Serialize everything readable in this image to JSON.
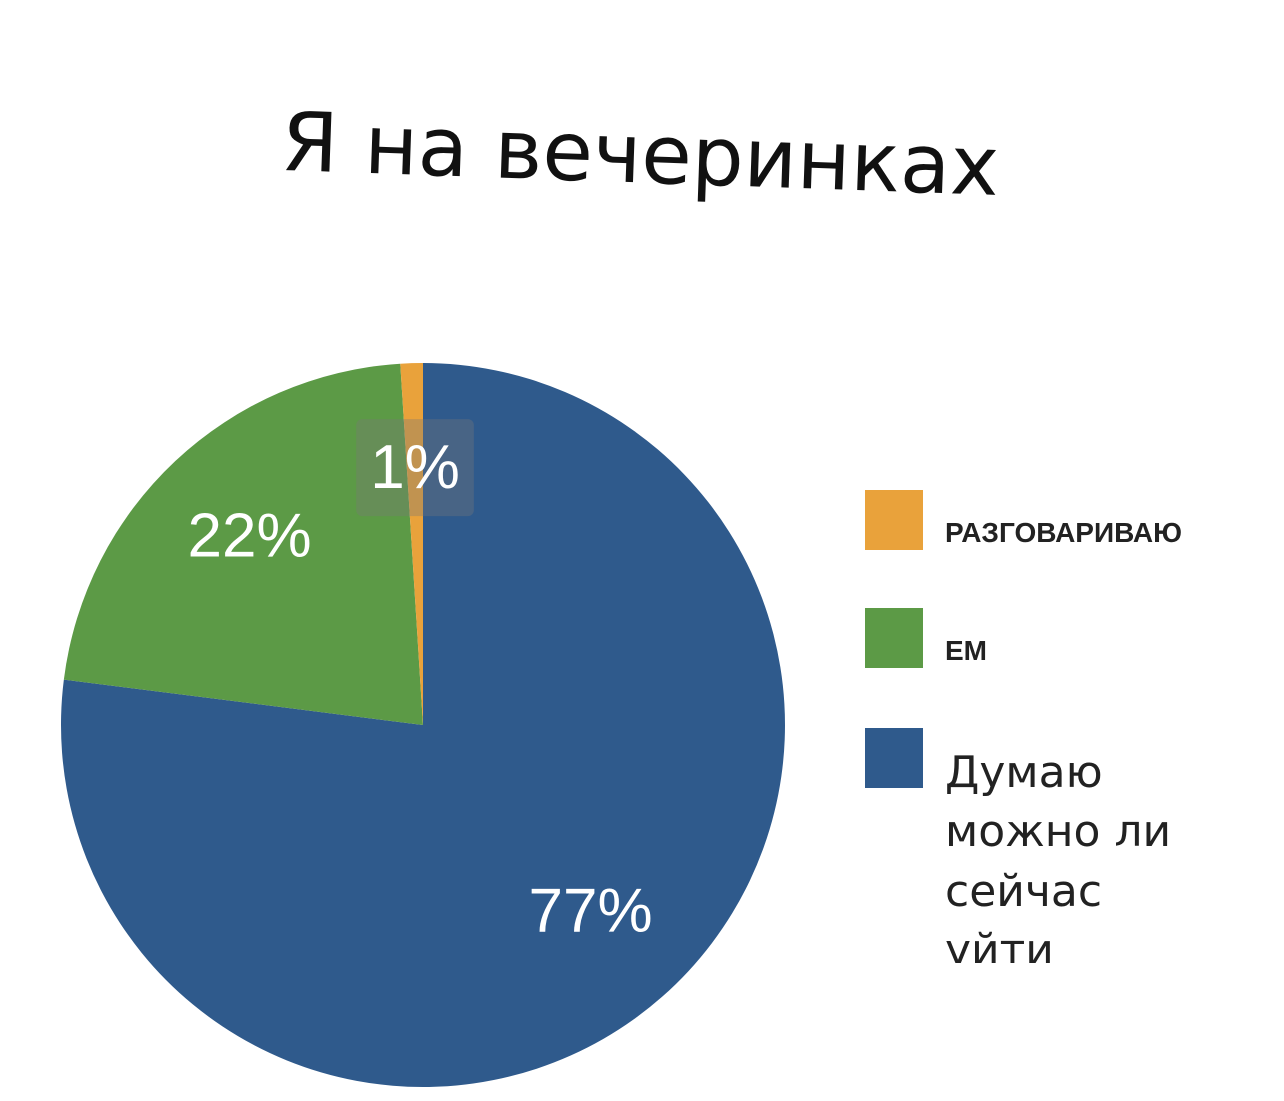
{
  "chart_data": {
    "type": "pie",
    "title": "Я на вечеринках",
    "categories": [
      "РАЗГОВАРИВАЮ",
      "ЕМ",
      "Думаю можно ли сейчас уйти"
    ],
    "values": [
      1,
      22,
      77
    ],
    "value_labels": [
      "1%",
      "22%",
      "77%"
    ],
    "colors": [
      "#e9a23b",
      "#5c9a46",
      "#2f5a8c"
    ],
    "legend": "right"
  }
}
